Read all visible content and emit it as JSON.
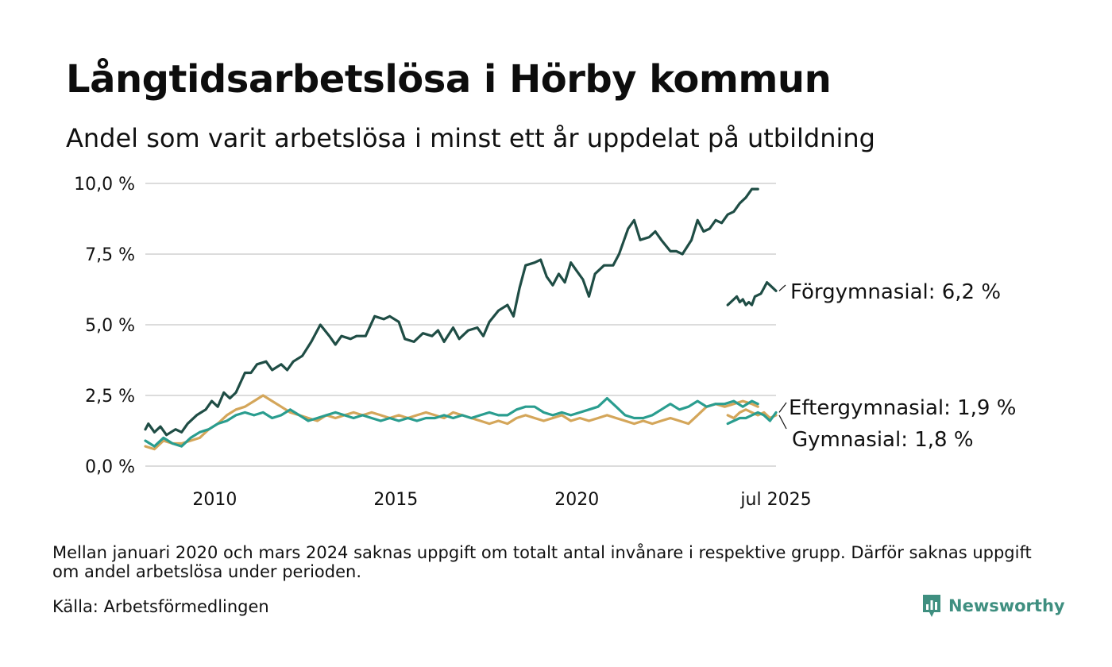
{
  "header": {
    "title": "Långtidsarbetslösa i Hörby kommun",
    "subtitle": "Andel som varit arbetslösa i minst ett år uppdelat på utbildning"
  },
  "footer": {
    "note": "Mellan januari 2020 och mars 2024 saknas uppgift om totalt antal invånare i respektive grupp. Därför saknas uppgift om andel arbetslösa under perioden.",
    "source": "Källa: Arbetsförmedlingen",
    "brand": "Newsworthy"
  },
  "icons": {
    "brand": "bar-chart-speech-bubble-icon"
  },
  "colors": {
    "forgymnasial": "#1f4d45",
    "eftergymnasial": "#2a9d8f",
    "gymnasial": "#d4a65a",
    "grid": "#dcdcdc",
    "brand": "#3f8f80"
  },
  "chart_data": {
    "type": "line",
    "title": "",
    "xlabel": "",
    "ylabel": "",
    "ylim": [
      0,
      10
    ],
    "y_ticks": [
      0,
      2.5,
      5,
      7.5,
      10
    ],
    "y_tick_labels": [
      "0,0 %",
      "2,5 %",
      "5,0 %",
      "7,5 %",
      "10,0 %"
    ],
    "xlim": [
      "2008-02",
      "2025-07"
    ],
    "x_ticks": [
      "2010-01",
      "2015-01",
      "2020-01",
      "2025-07"
    ],
    "x_tick_labels": [
      "2010",
      "2015",
      "2020",
      "jul 2025"
    ],
    "grid": true,
    "legend": "direct labels at line ends",
    "series": [
      {
        "name": "Förgymnasial",
        "end_label": "Förgymnasial: 6,2 %",
        "color": "#1f4d45",
        "points": [
          [
            "2008-02",
            1.3
          ],
          [
            "2008-03",
            1.5
          ],
          [
            "2008-05",
            1.2
          ],
          [
            "2008-07",
            1.4
          ],
          [
            "2008-09",
            1.1
          ],
          [
            "2008-12",
            1.3
          ],
          [
            "2009-02",
            1.2
          ],
          [
            "2009-04",
            1.5
          ],
          [
            "2009-07",
            1.8
          ],
          [
            "2009-10",
            2.0
          ],
          [
            "2009-12",
            2.3
          ],
          [
            "2010-02",
            2.1
          ],
          [
            "2010-04",
            2.6
          ],
          [
            "2010-06",
            2.4
          ],
          [
            "2010-08",
            2.6
          ],
          [
            "2010-11",
            3.3
          ],
          [
            "2011-01",
            3.3
          ],
          [
            "2011-03",
            3.6
          ],
          [
            "2011-06",
            3.7
          ],
          [
            "2011-08",
            3.4
          ],
          [
            "2011-11",
            3.6
          ],
          [
            "2012-01",
            3.4
          ],
          [
            "2012-03",
            3.7
          ],
          [
            "2012-06",
            3.9
          ],
          [
            "2012-09",
            4.4
          ],
          [
            "2012-12",
            5.0
          ],
          [
            "2013-03",
            4.6
          ],
          [
            "2013-05",
            4.3
          ],
          [
            "2013-07",
            4.6
          ],
          [
            "2013-10",
            4.5
          ],
          [
            "2013-12",
            4.6
          ],
          [
            "2014-03",
            4.6
          ],
          [
            "2014-06",
            5.3
          ],
          [
            "2014-09",
            5.2
          ],
          [
            "2014-11",
            5.3
          ],
          [
            "2015-02",
            5.1
          ],
          [
            "2015-04",
            4.5
          ],
          [
            "2015-07",
            4.4
          ],
          [
            "2015-10",
            4.7
          ],
          [
            "2016-01",
            4.6
          ],
          [
            "2016-03",
            4.8
          ],
          [
            "2016-05",
            4.4
          ],
          [
            "2016-08",
            4.9
          ],
          [
            "2016-10",
            4.5
          ],
          [
            "2017-01",
            4.8
          ],
          [
            "2017-04",
            4.9
          ],
          [
            "2017-06",
            4.6
          ],
          [
            "2017-08",
            5.1
          ],
          [
            "2017-11",
            5.5
          ],
          [
            "2018-02",
            5.7
          ],
          [
            "2018-04",
            5.3
          ],
          [
            "2018-06",
            6.3
          ],
          [
            "2018-08",
            7.1
          ],
          [
            "2018-11",
            7.2
          ],
          [
            "2019-01",
            7.3
          ],
          [
            "2019-03",
            6.7
          ],
          [
            "2019-05",
            6.4
          ],
          [
            "2019-07",
            6.8
          ],
          [
            "2019-09",
            6.5
          ],
          [
            "2019-11",
            7.2
          ],
          [
            "2020-01",
            6.9
          ],
          [
            "2020-03",
            6.6
          ],
          [
            "2020-05",
            6.0
          ],
          [
            "2020-07",
            6.8
          ],
          [
            "2020-10",
            7.1
          ],
          [
            "2021-01",
            7.1
          ],
          [
            "2021-03",
            7.5
          ],
          [
            "2021-06",
            8.4
          ],
          [
            "2021-08",
            8.7
          ],
          [
            "2021-10",
            8.0
          ],
          [
            "2022-01",
            8.1
          ],
          [
            "2022-03",
            8.3
          ],
          [
            "2022-05",
            8.0
          ],
          [
            "2022-08",
            7.6
          ],
          [
            "2022-10",
            7.6
          ],
          [
            "2022-12",
            7.5
          ],
          [
            "2023-03",
            8.0
          ],
          [
            "2023-05",
            8.7
          ],
          [
            "2023-07",
            8.3
          ],
          [
            "2023-09",
            8.4
          ],
          [
            "2023-11",
            8.7
          ],
          [
            "2024-01",
            8.6
          ],
          [
            "2024-03",
            8.9
          ],
          [
            "2024-05",
            9.0
          ],
          [
            "2024-07",
            9.3
          ],
          [
            "2024-09",
            9.5
          ],
          [
            "2024-11",
            9.8
          ],
          [
            "2025-01",
            9.8
          ],
          null,
          [
            "2024-03",
            5.7
          ],
          [
            "2024-05",
            5.9
          ],
          [
            "2024-06",
            6.0
          ],
          [
            "2024-07",
            5.8
          ],
          [
            "2024-08",
            5.9
          ],
          [
            "2024-09",
            5.7
          ],
          [
            "2024-10",
            5.8
          ],
          [
            "2024-11",
            5.7
          ],
          [
            "2024-12",
            6.0
          ],
          [
            "2025-02",
            6.1
          ],
          [
            "2025-03",
            6.3
          ],
          [
            "2025-04",
            6.5
          ],
          [
            "2025-05",
            6.4
          ],
          [
            "2025-07",
            6.2
          ]
        ]
      },
      {
        "name": "Eftergymnasial",
        "end_label": "Eftergymnasial: 1,9 %",
        "color": "#2a9d8f",
        "points": [
          [
            "2008-02",
            0.9
          ],
          [
            "2008-05",
            0.7
          ],
          [
            "2008-08",
            1.0
          ],
          [
            "2008-11",
            0.8
          ],
          [
            "2009-02",
            0.7
          ],
          [
            "2009-05",
            1.0
          ],
          [
            "2009-08",
            1.2
          ],
          [
            "2009-11",
            1.3
          ],
          [
            "2010-02",
            1.5
          ],
          [
            "2010-05",
            1.6
          ],
          [
            "2010-08",
            1.8
          ],
          [
            "2010-11",
            1.9
          ],
          [
            "2011-02",
            1.8
          ],
          [
            "2011-05",
            1.9
          ],
          [
            "2011-08",
            1.7
          ],
          [
            "2011-11",
            1.8
          ],
          [
            "2012-02",
            2.0
          ],
          [
            "2012-05",
            1.8
          ],
          [
            "2012-08",
            1.6
          ],
          [
            "2012-11",
            1.7
          ],
          [
            "2013-02",
            1.8
          ],
          [
            "2013-05",
            1.9
          ],
          [
            "2013-08",
            1.8
          ],
          [
            "2013-11",
            1.7
          ],
          [
            "2014-02",
            1.8
          ],
          [
            "2014-05",
            1.7
          ],
          [
            "2014-08",
            1.6
          ],
          [
            "2014-11",
            1.7
          ],
          [
            "2015-02",
            1.6
          ],
          [
            "2015-05",
            1.7
          ],
          [
            "2015-08",
            1.6
          ],
          [
            "2015-11",
            1.7
          ],
          [
            "2016-02",
            1.7
          ],
          [
            "2016-05",
            1.8
          ],
          [
            "2016-08",
            1.7
          ],
          [
            "2016-11",
            1.8
          ],
          [
            "2017-02",
            1.7
          ],
          [
            "2017-05",
            1.8
          ],
          [
            "2017-08",
            1.9
          ],
          [
            "2017-11",
            1.8
          ],
          [
            "2018-02",
            1.8
          ],
          [
            "2018-05",
            2.0
          ],
          [
            "2018-08",
            2.1
          ],
          [
            "2018-11",
            2.1
          ],
          [
            "2019-02",
            1.9
          ],
          [
            "2019-05",
            1.8
          ],
          [
            "2019-08",
            1.9
          ],
          [
            "2019-11",
            1.8
          ],
          [
            "2020-02",
            1.9
          ],
          [
            "2020-05",
            2.0
          ],
          [
            "2020-08",
            2.1
          ],
          [
            "2020-11",
            2.4
          ],
          [
            "2021-02",
            2.1
          ],
          [
            "2021-05",
            1.8
          ],
          [
            "2021-08",
            1.7
          ],
          [
            "2021-11",
            1.7
          ],
          [
            "2022-02",
            1.8
          ],
          [
            "2022-05",
            2.0
          ],
          [
            "2022-08",
            2.2
          ],
          [
            "2022-11",
            2.0
          ],
          [
            "2023-02",
            2.1
          ],
          [
            "2023-05",
            2.3
          ],
          [
            "2023-08",
            2.1
          ],
          [
            "2023-11",
            2.2
          ],
          [
            "2024-02",
            2.2
          ],
          [
            "2024-05",
            2.3
          ],
          [
            "2024-08",
            2.1
          ],
          [
            "2024-11",
            2.3
          ],
          [
            "2025-01",
            2.2
          ],
          null,
          [
            "2024-03",
            1.5
          ],
          [
            "2024-05",
            1.6
          ],
          [
            "2024-07",
            1.7
          ],
          [
            "2024-09",
            1.7
          ],
          [
            "2024-11",
            1.8
          ],
          [
            "2025-01",
            1.9
          ],
          [
            "2025-03",
            1.8
          ],
          [
            "2025-05",
            1.6
          ],
          [
            "2025-07",
            1.9
          ]
        ]
      },
      {
        "name": "Gymnasial",
        "end_label": "Gymnasial: 1,8 %",
        "color": "#d4a65a",
        "points": [
          [
            "2008-02",
            0.7
          ],
          [
            "2008-05",
            0.6
          ],
          [
            "2008-08",
            0.9
          ],
          [
            "2008-11",
            0.8
          ],
          [
            "2009-02",
            0.8
          ],
          [
            "2009-05",
            0.9
          ],
          [
            "2009-08",
            1.0
          ],
          [
            "2009-11",
            1.3
          ],
          [
            "2010-02",
            1.5
          ],
          [
            "2010-05",
            1.8
          ],
          [
            "2010-08",
            2.0
          ],
          [
            "2010-11",
            2.1
          ],
          [
            "2011-02",
            2.3
          ],
          [
            "2011-05",
            2.5
          ],
          [
            "2011-08",
            2.3
          ],
          [
            "2011-11",
            2.1
          ],
          [
            "2012-02",
            1.9
          ],
          [
            "2012-05",
            1.8
          ],
          [
            "2012-08",
            1.7
          ],
          [
            "2012-11",
            1.6
          ],
          [
            "2013-02",
            1.8
          ],
          [
            "2013-05",
            1.7
          ],
          [
            "2013-08",
            1.8
          ],
          [
            "2013-11",
            1.9
          ],
          [
            "2014-02",
            1.8
          ],
          [
            "2014-05",
            1.9
          ],
          [
            "2014-08",
            1.8
          ],
          [
            "2014-11",
            1.7
          ],
          [
            "2015-02",
            1.8
          ],
          [
            "2015-05",
            1.7
          ],
          [
            "2015-08",
            1.8
          ],
          [
            "2015-11",
            1.9
          ],
          [
            "2016-02",
            1.8
          ],
          [
            "2016-05",
            1.7
          ],
          [
            "2016-08",
            1.9
          ],
          [
            "2016-11",
            1.8
          ],
          [
            "2017-02",
            1.7
          ],
          [
            "2017-05",
            1.6
          ],
          [
            "2017-08",
            1.5
          ],
          [
            "2017-11",
            1.6
          ],
          [
            "2018-02",
            1.5
          ],
          [
            "2018-05",
            1.7
          ],
          [
            "2018-08",
            1.8
          ],
          [
            "2018-11",
            1.7
          ],
          [
            "2019-02",
            1.6
          ],
          [
            "2019-05",
            1.7
          ],
          [
            "2019-08",
            1.8
          ],
          [
            "2019-11",
            1.6
          ],
          [
            "2020-02",
            1.7
          ],
          [
            "2020-05",
            1.6
          ],
          [
            "2020-08",
            1.7
          ],
          [
            "2020-11",
            1.8
          ],
          [
            "2021-02",
            1.7
          ],
          [
            "2021-05",
            1.6
          ],
          [
            "2021-08",
            1.5
          ],
          [
            "2021-11",
            1.6
          ],
          [
            "2022-02",
            1.5
          ],
          [
            "2022-05",
            1.6
          ],
          [
            "2022-08",
            1.7
          ],
          [
            "2022-11",
            1.6
          ],
          [
            "2023-02",
            1.5
          ],
          [
            "2023-05",
            1.8
          ],
          [
            "2023-08",
            2.1
          ],
          [
            "2023-11",
            2.2
          ],
          [
            "2024-02",
            2.1
          ],
          [
            "2024-05",
            2.2
          ],
          [
            "2024-08",
            2.3
          ],
          [
            "2024-11",
            2.2
          ],
          [
            "2025-01",
            2.1
          ],
          null,
          [
            "2024-03",
            1.8
          ],
          [
            "2024-05",
            1.7
          ],
          [
            "2024-07",
            1.9
          ],
          [
            "2024-09",
            2.0
          ],
          [
            "2024-11",
            1.9
          ],
          [
            "2025-01",
            1.8
          ],
          [
            "2025-03",
            1.9
          ],
          [
            "2025-05",
            1.7
          ],
          [
            "2025-07",
            1.8
          ]
        ]
      }
    ]
  }
}
